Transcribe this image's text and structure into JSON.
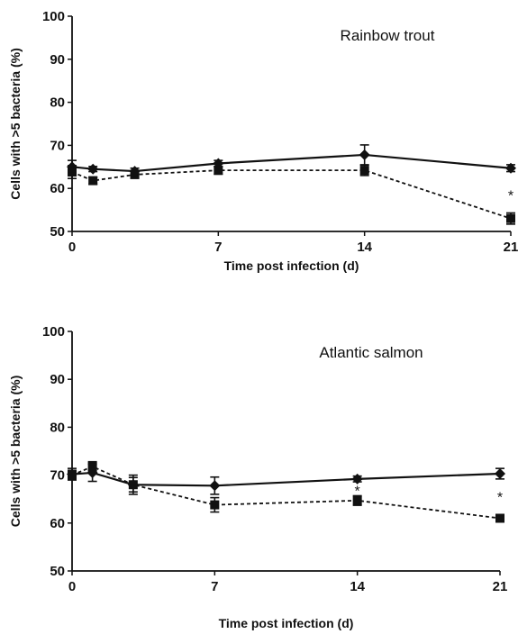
{
  "chart_data": [
    {
      "type": "line",
      "title": "Rainbow trout",
      "xlabel": "Time post infection (d)",
      "ylabel": "Cells with >5 bacteria (%)",
      "xlim": [
        0,
        21
      ],
      "ylim": [
        50,
        100
      ],
      "xticks": [
        0,
        7,
        14,
        21
      ],
      "yticks": [
        50,
        60,
        70,
        80,
        90,
        100
      ],
      "grid": false,
      "series": [
        {
          "marker": "diamond",
          "line_style": "solid",
          "points": [
            {
              "x": 0,
              "y": 65.0,
              "err": 1.5
            },
            {
              "x": 1,
              "y": 64.5,
              "err": 0.6
            },
            {
              "x": 3,
              "y": 64.0,
              "err": 0.7
            },
            {
              "x": 7,
              "y": 65.8,
              "err": 0.7
            },
            {
              "x": 14,
              "y": 67.8,
              "err": 2.3
            },
            {
              "x": 21,
              "y": 64.7,
              "err": 0.8
            }
          ]
        },
        {
          "marker": "square",
          "line_style": "dashed",
          "points": [
            {
              "x": 0,
              "y": 63.8,
              "err": 1.5
            },
            {
              "x": 1,
              "y": 61.8,
              "err": 0.8
            },
            {
              "x": 3,
              "y": 63.2,
              "err": 0.8
            },
            {
              "x": 7,
              "y": 64.2,
              "err": 0.9
            },
            {
              "x": 14,
              "y": 64.2,
              "err": 1.2
            },
            {
              "x": 21,
              "y": 53.0,
              "err": 1.3
            }
          ]
        }
      ],
      "annotations": [
        {
          "text": "*",
          "x": 21,
          "y": 58.5
        }
      ]
    },
    {
      "type": "line",
      "title": "Atlantic salmon",
      "xlabel": "Time post infection (d)",
      "ylabel": "Cells with >5 bacteria (%)",
      "xlim": [
        0,
        21
      ],
      "ylim": [
        50,
        100
      ],
      "xticks": [
        0,
        7,
        14,
        21
      ],
      "yticks": [
        50,
        60,
        70,
        80,
        90,
        100
      ],
      "grid": false,
      "series": [
        {
          "marker": "diamond",
          "line_style": "solid",
          "points": [
            {
              "x": 0,
              "y": 70.2,
              "err": 1.2
            },
            {
              "x": 1,
              "y": 70.5,
              "err": 1.8
            },
            {
              "x": 3,
              "y": 68.0,
              "err": 2.0
            },
            {
              "x": 7,
              "y": 67.8,
              "err": 1.8
            },
            {
              "x": 14,
              "y": 69.2,
              "err": 0.6
            },
            {
              "x": 21,
              "y": 70.3,
              "err": 1.1
            }
          ]
        },
        {
          "marker": "square",
          "line_style": "dashed",
          "points": [
            {
              "x": 0,
              "y": 70.0,
              "err": 1.0
            },
            {
              "x": 1,
              "y": 71.8,
              "err": 1.0
            },
            {
              "x": 3,
              "y": 68.0,
              "err": 1.5
            },
            {
              "x": 7,
              "y": 63.8,
              "err": 1.5
            },
            {
              "x": 14,
              "y": 64.7,
              "err": 1.0
            },
            {
              "x": 21,
              "y": 61.0,
              "err": 0.6
            }
          ]
        }
      ],
      "annotations": [
        {
          "text": "*",
          "x": 14,
          "y": 66.8
        },
        {
          "text": "*",
          "x": 21,
          "y": 65.5
        }
      ]
    }
  ]
}
